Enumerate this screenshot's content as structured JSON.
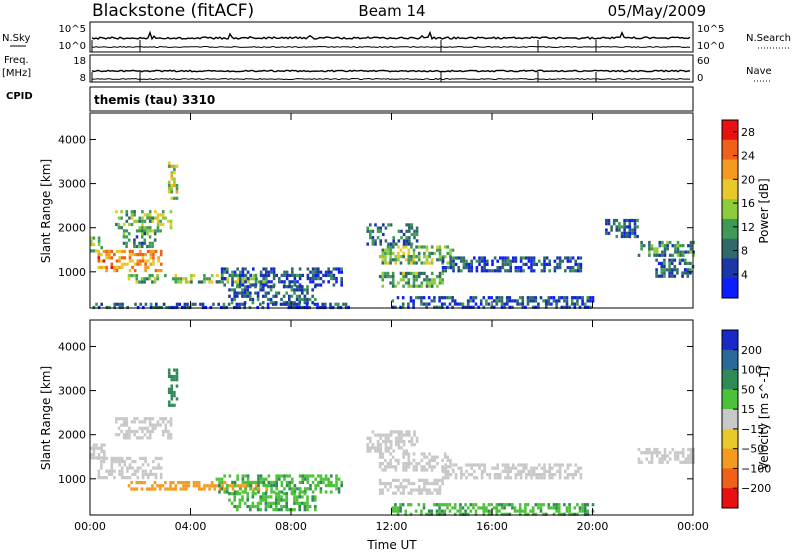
{
  "header": {
    "station": "Blackstone (fitACF)",
    "beam": "Beam 14",
    "date": "05/May/2009",
    "program": "themis (tau) 3310"
  },
  "top_panels": {
    "nsky_label": "N.Sky",
    "nsky_ticks": [
      "10^5",
      "10^0"
    ],
    "nsearch_label": "N.Search",
    "nsearch_ticks": [
      "10^5",
      "10^0"
    ],
    "freq_label_line1": "Freq.",
    "freq_label_line2": "[MHz]",
    "freq_ticks": [
      "18",
      "8"
    ],
    "nave_label": "Nave",
    "nave_ticks": [
      "60",
      "0"
    ],
    "cpid_label": "CPID"
  },
  "chart_data": [
    {
      "type": "heatmap",
      "name": "power",
      "xlabel": "",
      "ylabel": "Slant Range [km]",
      "x_ticks": [
        "00:00",
        "04:00",
        "08:00",
        "12:00",
        "16:00",
        "20:00",
        "00:00"
      ],
      "x_range_hours": [
        0,
        24
      ],
      "y_ticks": [
        1000,
        2000,
        3000,
        4000
      ],
      "y_range_km": [
        180,
        4600
      ],
      "colorbar_label": "Power [dB]",
      "colorbar_ticks": [
        4,
        8,
        12,
        16,
        20,
        24,
        28
      ],
      "colorbar_range": [
        0,
        30
      ],
      "colorbar_colors": [
        "#0b1cff",
        "#1a36a8",
        "#2f6a6a",
        "#3f9a55",
        "#8dcc3c",
        "#e8c82a",
        "#f49a20",
        "#f06018",
        "#e81010"
      ],
      "regions": [
        {
          "t0": 0.0,
          "t1": 0.6,
          "r0": 1450,
          "r1": 1800,
          "level": 14
        },
        {
          "t0": 0.3,
          "t1": 2.8,
          "r0": 1050,
          "r1": 1500,
          "level": 22
        },
        {
          "t0": 1.0,
          "t1": 3.2,
          "r0": 1900,
          "r1": 2400,
          "level": 14
        },
        {
          "t0": 1.3,
          "t1": 2.6,
          "r0": 1600,
          "r1": 1900,
          "level": 10
        },
        {
          "t0": 3.1,
          "t1": 3.5,
          "r0": 2700,
          "r1": 3500,
          "level": 16
        },
        {
          "t0": 1.5,
          "t1": 7.0,
          "r0": 780,
          "r1": 950,
          "level": 14
        },
        {
          "t0": 5.0,
          "t1": 10.0,
          "r0": 700,
          "r1": 1100,
          "level": 6
        },
        {
          "t0": 5.5,
          "t1": 9.0,
          "r0": 300,
          "r1": 700,
          "level": 8
        },
        {
          "t0": 0.0,
          "t1": 10.5,
          "r0": 180,
          "r1": 300,
          "level": 6
        },
        {
          "t0": 11.5,
          "t1": 14.5,
          "r0": 1200,
          "r1": 1600,
          "level": 14
        },
        {
          "t0": 11.0,
          "t1": 13.0,
          "r0": 1600,
          "r1": 2100,
          "level": 8
        },
        {
          "t0": 11.5,
          "t1": 14.0,
          "r0": 700,
          "r1": 1000,
          "level": 12
        },
        {
          "t0": 14.0,
          "t1": 19.5,
          "r0": 1000,
          "r1": 1350,
          "level": 6
        },
        {
          "t0": 12.0,
          "t1": 20.0,
          "r0": 180,
          "r1": 450,
          "level": 6
        },
        {
          "t0": 20.5,
          "t1": 21.8,
          "r0": 1800,
          "r1": 2200,
          "level": 6
        },
        {
          "t0": 21.8,
          "t1": 24.0,
          "r0": 1350,
          "r1": 1700,
          "level": 10
        },
        {
          "t0": 22.5,
          "t1": 24.0,
          "r0": 900,
          "r1": 1300,
          "level": 6
        }
      ]
    },
    {
      "type": "heatmap",
      "name": "velocity",
      "xlabel": "Time UT",
      "ylabel": "Slant Range [km]",
      "x_ticks": [
        "00:00",
        "04:00",
        "08:00",
        "12:00",
        "16:00",
        "20:00",
        "00:00"
      ],
      "x_range_hours": [
        0,
        24
      ],
      "y_ticks": [
        1000,
        2000,
        3000,
        4000
      ],
      "y_range_km": [
        180,
        4600
      ],
      "colorbar_label": "Velocity [m s^-1]",
      "colorbar_ticks": [
        "200",
        "100",
        "50",
        "15",
        "−15",
        "−50",
        "−100",
        "−200"
      ],
      "colorbar_colors": [
        "#1a28c8",
        "#2a6a9a",
        "#2f8a58",
        "#4cc23a",
        "#c8c8c8",
        "#e8c82a",
        "#f49a20",
        "#f06018",
        "#e81010"
      ],
      "regions": [
        {
          "t0": 0.0,
          "t1": 0.6,
          "r0": 1450,
          "r1": 1800,
          "level": 0
        },
        {
          "t0": 0.3,
          "t1": 2.8,
          "r0": 1050,
          "r1": 1500,
          "level": 0
        },
        {
          "t0": 1.0,
          "t1": 3.2,
          "r0": 1900,
          "r1": 2400,
          "level": 0
        },
        {
          "t0": 3.1,
          "t1": 3.5,
          "r0": 2700,
          "r1": 3500,
          "level": 40
        },
        {
          "t0": 1.5,
          "t1": 7.0,
          "r0": 780,
          "r1": 950,
          "level": -40
        },
        {
          "t0": 5.0,
          "t1": 10.0,
          "r0": 700,
          "r1": 1100,
          "level": 30
        },
        {
          "t0": 5.5,
          "t1": 9.0,
          "r0": 300,
          "r1": 700,
          "level": 30
        },
        {
          "t0": 11.5,
          "t1": 14.5,
          "r0": 1200,
          "r1": 1600,
          "level": 0
        },
        {
          "t0": 11.0,
          "t1": 13.0,
          "r0": 1600,
          "r1": 2100,
          "level": 0
        },
        {
          "t0": 11.5,
          "t1": 14.0,
          "r0": 700,
          "r1": 1000,
          "level": 0
        },
        {
          "t0": 14.0,
          "t1": 19.5,
          "r0": 1000,
          "r1": 1350,
          "level": 0
        },
        {
          "t0": 12.0,
          "t1": 20.0,
          "r0": 180,
          "r1": 450,
          "level": 30
        },
        {
          "t0": 21.8,
          "t1": 24.0,
          "r0": 1350,
          "r1": 1700,
          "level": 0
        }
      ]
    }
  ]
}
